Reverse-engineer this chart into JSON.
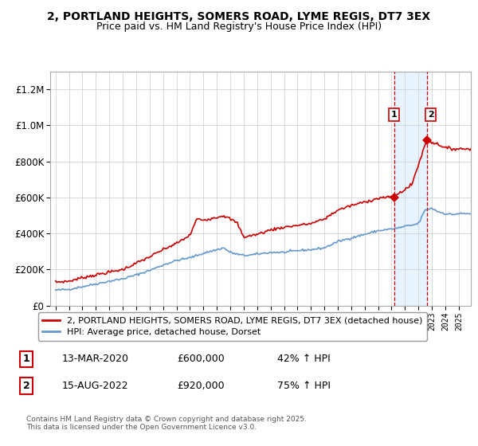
{
  "title_line1": "2, PORTLAND HEIGHTS, SOMERS ROAD, LYME REGIS, DT7 3EX",
  "title_line2": "Price paid vs. HM Land Registry's House Price Index (HPI)",
  "legend_line1": "2, PORTLAND HEIGHTS, SOMERS ROAD, LYME REGIS, DT7 3EX (detached house)",
  "legend_line2": "HPI: Average price, detached house, Dorset",
  "annotation1_date": "13-MAR-2020",
  "annotation1_price": "£600,000",
  "annotation1_hpi": "42% ↑ HPI",
  "annotation2_date": "15-AUG-2022",
  "annotation2_price": "£920,000",
  "annotation2_hpi": "75% ↑ HPI",
  "footer": "Contains HM Land Registry data © Crown copyright and database right 2025.\nThis data is licensed under the Open Government Licence v3.0.",
  "red_color": "#cc0000",
  "blue_color": "#6699cc",
  "background_shade": "#ddeeff",
  "sale1_x": 2020.19,
  "sale2_x": 2022.62,
  "sale1_y": 600000,
  "sale2_y": 920000,
  "ylim": [
    0,
    1300000
  ],
  "xlim_start": 1994.6,
  "xlim_end": 2025.9
}
